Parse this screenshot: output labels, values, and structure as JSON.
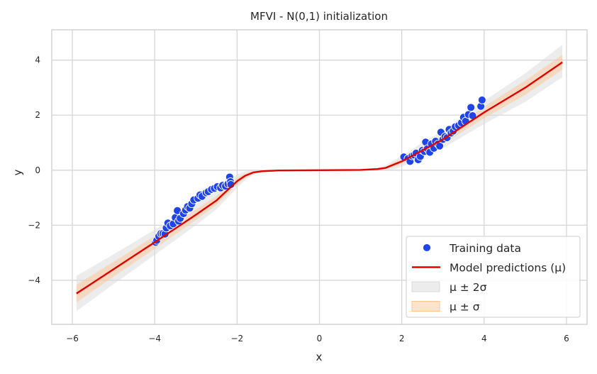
{
  "chart_data": {
    "type": "line",
    "title": "MFVI - N(0,1) initialization",
    "xlabel": "x",
    "ylabel": "y",
    "xlim": [
      -6.5,
      6.5
    ],
    "ylim": [
      -5.6,
      5.1
    ],
    "x_ticks": [
      -6,
      -4,
      -2,
      0,
      2,
      4,
      6
    ],
    "y_ticks": [
      -4,
      -2,
      0,
      2,
      4
    ],
    "x_tick_labels": [
      "−6",
      "−4",
      "−2",
      "0",
      "2",
      "4",
      "6"
    ],
    "y_tick_labels": [
      "−4",
      "−2",
      "0",
      "2",
      "4"
    ],
    "grid": true,
    "legend_position": "bottom-right",
    "series": [
      {
        "name": "Training data",
        "kind": "scatter",
        "color": "#1f44e8",
        "points": [
          [
            -3.98,
            -2.62
          ],
          [
            -3.95,
            -2.55
          ],
          [
            -3.9,
            -2.4
          ],
          [
            -3.85,
            -2.3
          ],
          [
            -3.8,
            -2.3
          ],
          [
            -3.75,
            -2.32
          ],
          [
            -3.72,
            -2.1
          ],
          [
            -3.68,
            -1.92
          ],
          [
            -3.62,
            -2.02
          ],
          [
            -3.55,
            -1.95
          ],
          [
            -3.5,
            -1.72
          ],
          [
            -3.45,
            -1.47
          ],
          [
            -3.42,
            -1.85
          ],
          [
            -3.38,
            -1.75
          ],
          [
            -3.3,
            -1.58
          ],
          [
            -3.25,
            -1.45
          ],
          [
            -3.2,
            -1.32
          ],
          [
            -3.15,
            -1.38
          ],
          [
            -3.1,
            -1.22
          ],
          [
            -3.05,
            -1.08
          ],
          [
            -2.95,
            -1.02
          ],
          [
            -2.9,
            -0.9
          ],
          [
            -2.85,
            -0.95
          ],
          [
            -2.75,
            -0.82
          ],
          [
            -2.7,
            -0.78
          ],
          [
            -2.62,
            -0.7
          ],
          [
            -2.55,
            -0.66
          ],
          [
            -2.48,
            -0.6
          ],
          [
            -2.4,
            -0.64
          ],
          [
            -2.35,
            -0.55
          ],
          [
            -2.28,
            -0.58
          ],
          [
            -2.22,
            -0.5
          ],
          [
            -2.18,
            -0.25
          ],
          [
            -2.16,
            -0.42
          ],
          [
            -2.15,
            -0.52
          ],
          [
            2.05,
            0.48
          ],
          [
            2.15,
            0.42
          ],
          [
            2.2,
            0.32
          ],
          [
            2.25,
            0.52
          ],
          [
            2.3,
            0.55
          ],
          [
            2.35,
            0.62
          ],
          [
            2.4,
            0.38
          ],
          [
            2.45,
            0.5
          ],
          [
            2.5,
            0.72
          ],
          [
            2.55,
            0.68
          ],
          [
            2.58,
            1.02
          ],
          [
            2.62,
            0.78
          ],
          [
            2.68,
            0.65
          ],
          [
            2.72,
            0.95
          ],
          [
            2.78,
            0.8
          ],
          [
            2.82,
            1.05
          ],
          [
            2.88,
            0.95
          ],
          [
            2.92,
            0.88
          ],
          [
            2.95,
            1.38
          ],
          [
            3.0,
            1.12
          ],
          [
            3.05,
            1.22
          ],
          [
            3.1,
            1.18
          ],
          [
            3.15,
            1.48
          ],
          [
            3.2,
            1.35
          ],
          [
            3.25,
            1.42
          ],
          [
            3.3,
            1.58
          ],
          [
            3.38,
            1.62
          ],
          [
            3.45,
            1.72
          ],
          [
            3.5,
            1.92
          ],
          [
            3.55,
            1.78
          ],
          [
            3.62,
            2.02
          ],
          [
            3.68,
            2.28
          ],
          [
            3.72,
            1.98
          ],
          [
            3.92,
            2.32
          ],
          [
            3.95,
            2.55
          ]
        ]
      },
      {
        "name": "Model predictions (μ)",
        "kind": "line",
        "color": "#e00000",
        "points": [
          [
            -5.9,
            -4.48
          ],
          [
            -5.0,
            -3.6
          ],
          [
            -4.0,
            -2.62
          ],
          [
            -3.0,
            -1.62
          ],
          [
            -2.5,
            -1.1
          ],
          [
            -2.2,
            -0.68
          ],
          [
            -2.0,
            -0.4
          ],
          [
            -1.8,
            -0.2
          ],
          [
            -1.6,
            -0.08
          ],
          [
            -1.4,
            -0.04
          ],
          [
            -1.0,
            -0.01
          ],
          [
            0.0,
            0.0
          ],
          [
            1.0,
            0.01
          ],
          [
            1.4,
            0.04
          ],
          [
            1.6,
            0.08
          ],
          [
            1.8,
            0.2
          ],
          [
            2.0,
            0.32
          ],
          [
            2.2,
            0.48
          ],
          [
            2.5,
            0.72
          ],
          [
            3.0,
            1.12
          ],
          [
            4.0,
            2.1
          ],
          [
            5.0,
            3.0
          ],
          [
            5.9,
            3.92
          ]
        ]
      },
      {
        "name": "μ ± 2σ",
        "kind": "band",
        "color": "#d9d9d9",
        "opacity": 0.5,
        "points": [
          [
            -5.9,
            -5.12,
            -3.84
          ],
          [
            -5.0,
            -4.14,
            -3.06
          ],
          [
            -4.0,
            -3.08,
            -2.16
          ],
          [
            -3.0,
            -2.0,
            -1.24
          ],
          [
            -2.5,
            -1.42,
            -0.78
          ],
          [
            -2.2,
            -0.96,
            -0.4
          ],
          [
            -2.0,
            -0.64,
            -0.16
          ],
          [
            -1.8,
            -0.36,
            -0.04
          ],
          [
            -1.6,
            -0.16,
            0.0
          ],
          [
            -1.4,
            -0.08,
            0.0
          ],
          [
            -1.0,
            -0.03,
            0.01
          ],
          [
            0.0,
            -0.01,
            0.01
          ],
          [
            1.0,
            -0.01,
            0.03
          ],
          [
            1.4,
            0.0,
            0.08
          ],
          [
            1.6,
            0.0,
            0.16
          ],
          [
            1.8,
            0.04,
            0.36
          ],
          [
            2.0,
            0.12,
            0.52
          ],
          [
            2.2,
            0.26,
            0.7
          ],
          [
            2.5,
            0.44,
            1.0
          ],
          [
            3.0,
            0.8,
            1.44
          ],
          [
            4.0,
            1.68,
            2.52
          ],
          [
            5.0,
            2.48,
            3.52
          ],
          [
            5.9,
            3.38,
            4.56
          ]
        ]
      },
      {
        "name": "μ ± σ",
        "kind": "band",
        "color": "#ffc48c",
        "opacity": 0.45,
        "points": [
          [
            -5.9,
            -4.8,
            -4.16
          ],
          [
            -5.0,
            -3.87,
            -3.33
          ],
          [
            -4.0,
            -2.85,
            -2.39
          ],
          [
            -3.0,
            -1.81,
            -1.43
          ],
          [
            -2.5,
            -1.26,
            -0.94
          ],
          [
            -2.2,
            -0.82,
            -0.54
          ],
          [
            -2.0,
            -0.52,
            -0.28
          ],
          [
            -1.8,
            -0.28,
            -0.12
          ],
          [
            -1.6,
            -0.12,
            -0.04
          ],
          [
            -1.4,
            -0.06,
            -0.02
          ],
          [
            -1.0,
            -0.02,
            0.0
          ],
          [
            0.0,
            -0.005,
            0.005
          ],
          [
            1.0,
            0.0,
            0.02
          ],
          [
            1.4,
            0.02,
            0.06
          ],
          [
            1.6,
            0.04,
            0.12
          ],
          [
            1.8,
            0.12,
            0.28
          ],
          [
            2.0,
            0.22,
            0.42
          ],
          [
            2.2,
            0.37,
            0.59
          ],
          [
            2.5,
            0.58,
            0.86
          ],
          [
            3.0,
            0.96,
            1.28
          ],
          [
            4.0,
            1.89,
            2.31
          ],
          [
            5.0,
            2.74,
            3.26
          ],
          [
            5.9,
            3.65,
            4.19
          ]
        ]
      }
    ]
  }
}
